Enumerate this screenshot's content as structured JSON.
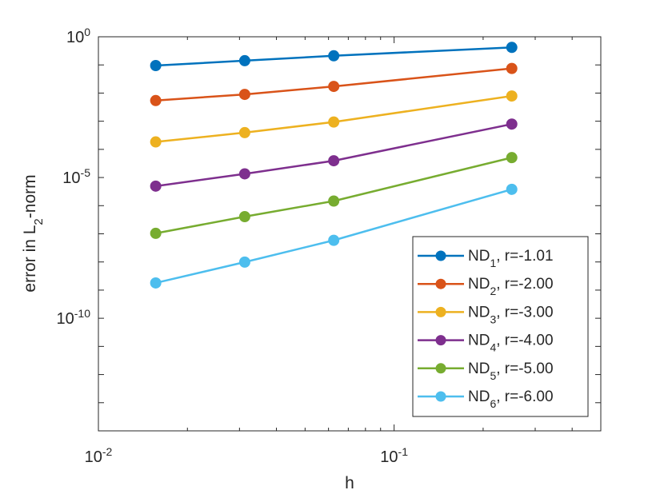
{
  "chart_data": {
    "type": "line",
    "title": "",
    "xlabel": "h",
    "ylabel_main": "error in L",
    "ylabel_sub": "2",
    "ylabel_suffix": "-norm",
    "x_scale": "log",
    "y_scale": "log",
    "xlim": [
      0.01,
      0.5
    ],
    "ylim": [
      1e-14,
      1
    ],
    "grid": false,
    "legend_position": "bottom-right",
    "x_ticks": [
      {
        "value": 0.01,
        "base": "10",
        "exp": "-2"
      },
      {
        "value": 0.1,
        "base": "10",
        "exp": "-1"
      }
    ],
    "y_ticks": [
      {
        "value": 1,
        "base": "10",
        "exp": "0"
      },
      {
        "value": 1e-05,
        "base": "10",
        "exp": "-5"
      },
      {
        "value": 1e-10,
        "base": "10",
        "exp": "-10"
      }
    ],
    "x": [
      0.015625,
      0.03125,
      0.0625,
      0.25
    ],
    "series": [
      {
        "name": "ND1",
        "label_main": "ND",
        "label_sub": "1",
        "label_rate": ", r=-1.01",
        "color": "#0072BD",
        "values": [
          0.0949,
          0.1413,
          0.2113,
          0.4199
        ]
      },
      {
        "name": "ND2",
        "label_main": "ND",
        "label_sub": "2",
        "label_rate": ", r=-2.00",
        "color": "#D95319",
        "values": [
          0.00543,
          0.00898,
          0.01727,
          0.0749
        ]
      },
      {
        "name": "ND3",
        "label_main": "ND",
        "label_sub": "3",
        "label_rate": ", r=-3.00",
        "color": "#EDB120",
        "values": [
          0.000184,
          0.000394,
          0.000938,
          0.00788
        ]
      },
      {
        "name": "ND4",
        "label_main": "ND",
        "label_sub": "4",
        "label_rate": ", r=-4.00",
        "color": "#7E2F8E",
        "values": [
          4.95e-06,
          1.35e-05,
          3.94e-05,
          0.000792
        ]
      },
      {
        "name": "ND5",
        "label_main": "ND",
        "label_sub": "5",
        "label_rate": ", r=-5.00",
        "color": "#77AC30",
        "values": [
          1.04e-07,
          4.08e-07,
          1.46e-06,
          5.09e-05
        ]
      },
      {
        "name": "ND6",
        "label_main": "ND",
        "label_sub": "6",
        "label_rate": ", r=-6.00",
        "color": "#4DBEEE",
        "values": [
          1.8e-09,
          9.89e-09,
          5.88e-08,
          3.81e-06
        ]
      }
    ]
  }
}
